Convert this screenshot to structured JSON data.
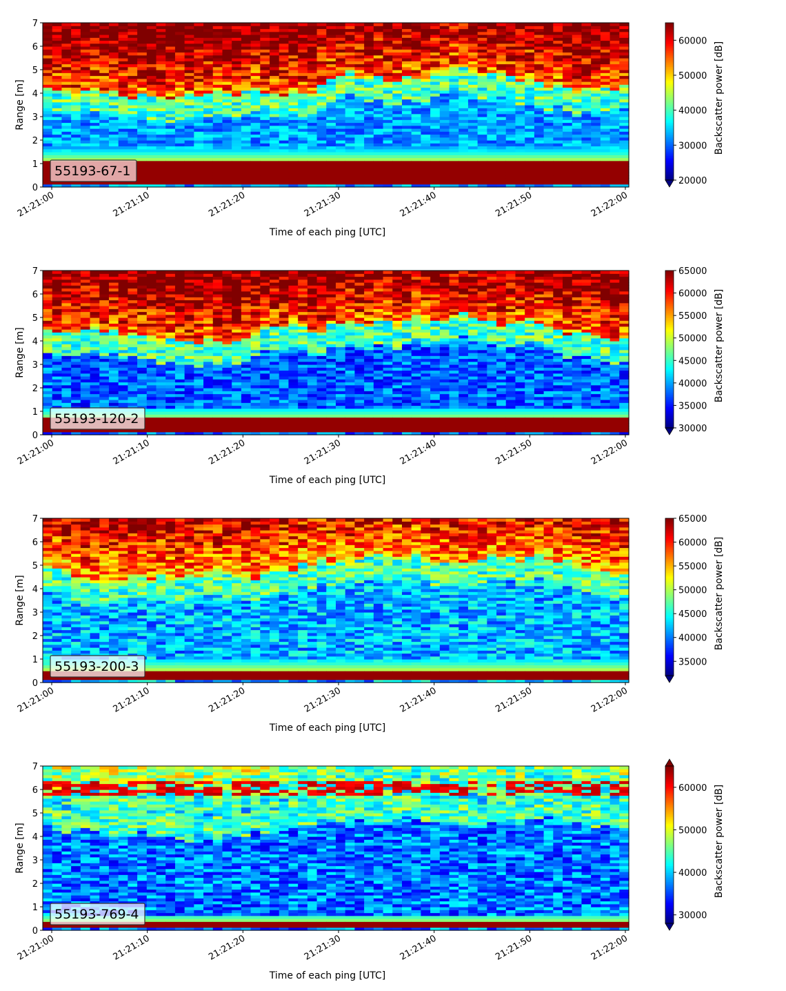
{
  "chart_data": [
    {
      "type": "heatmap",
      "panel_label": "55193-67-1",
      "xlabel": "Time of each ping [UTC]",
      "ylabel": "Range [m]",
      "x_ticks": [
        "21:21:00",
        "21:21:10",
        "21:21:20",
        "21:21:30",
        "21:21:40",
        "21:21:50",
        "21:22:00"
      ],
      "y_ticks": [
        "0",
        "1",
        "2",
        "3",
        "4",
        "5",
        "6",
        "7"
      ],
      "xlim": [
        "21:21:00",
        "21:22:00"
      ],
      "ylim": [
        0,
        7
      ],
      "colorbar": {
        "label": "Backscatter power [dB]",
        "cmap": "jet",
        "vmin": 20000,
        "vmax": 65000,
        "ticks": [
          "20000",
          "30000",
          "40000",
          "50000",
          "60000"
        ],
        "extend": "min"
      },
      "profile": {
        "bottom_band": [
          0.2,
          1.15
        ],
        "pattern": "strong surface band with mid-water noise, saturated returns above ~4.5 m"
      }
    },
    {
      "type": "heatmap",
      "panel_label": "55193-120-2",
      "xlabel": "Time of each ping [UTC]",
      "ylabel": "Range [m]",
      "x_ticks": [
        "21:21:00",
        "21:21:10",
        "21:21:20",
        "21:21:30",
        "21:21:40",
        "21:21:50",
        "21:22:00"
      ],
      "y_ticks": [
        "0",
        "1",
        "2",
        "3",
        "4",
        "5",
        "6",
        "7"
      ],
      "xlim": [
        "21:21:00",
        "21:22:00"
      ],
      "ylim": [
        0,
        7
      ],
      "colorbar": {
        "label": "Backscatter power [dB]",
        "cmap": "jet",
        "vmin": 30000,
        "vmax": 65000,
        "ticks": [
          "30000",
          "35000",
          "40000",
          "45000",
          "50000",
          "55000",
          "60000",
          "65000"
        ],
        "extend": "min"
      },
      "profile": {
        "bottom_band": [
          0.15,
          0.7
        ],
        "pattern": "thin near-range band, blue mid-water, saturated returns above ~4.5 m"
      }
    },
    {
      "type": "heatmap",
      "panel_label": "55193-200-3",
      "xlabel": "Time of each ping [UTC]",
      "ylabel": "Range [m]",
      "x_ticks": [
        "21:21:00",
        "21:21:10",
        "21:21:20",
        "21:21:30",
        "21:21:40",
        "21:21:50",
        "21:22:00"
      ],
      "y_ticks": [
        "0",
        "1",
        "2",
        "3",
        "4",
        "5",
        "6",
        "7"
      ],
      "xlim": [
        "21:21:00",
        "21:22:00"
      ],
      "ylim": [
        0,
        7
      ],
      "colorbar": {
        "label": "Backscatter power [dB]",
        "cmap": "jet",
        "vmin": 32000,
        "vmax": 65000,
        "ticks": [
          "35000",
          "40000",
          "45000",
          "50000",
          "55000",
          "60000",
          "65000"
        ],
        "extend": "min"
      },
      "profile": {
        "bottom_band": [
          0.15,
          0.55
        ],
        "pattern": "thin near-range band, mixed blue/cyan mid-water, warm returns above ~5 m"
      }
    },
    {
      "type": "heatmap",
      "panel_label": "55193-769-4",
      "xlabel": "Time of each ping [UTC]",
      "ylabel": "Range [m]",
      "x_ticks": [
        "21:21:00",
        "21:21:10",
        "21:21:20",
        "21:21:30",
        "21:21:40",
        "21:21:50",
        "21:22:00"
      ],
      "y_ticks": [
        "0",
        "1",
        "2",
        "3",
        "4",
        "5",
        "6",
        "7"
      ],
      "xlim": [
        "21:21:00",
        "21:22:00"
      ],
      "ylim": [
        0,
        7
      ],
      "colorbar": {
        "label": "Backscatter power [dB]",
        "cmap": "jet",
        "vmin": 28000,
        "vmax": 65000,
        "ticks": [
          "30000",
          "40000",
          "50000",
          "60000"
        ],
        "extend": "both"
      },
      "profile": {
        "bottom_band": [
          0.15,
          0.35
        ],
        "pattern": "very thin near-range band, dark blue water column, red scattered layer near 6 m"
      }
    }
  ]
}
